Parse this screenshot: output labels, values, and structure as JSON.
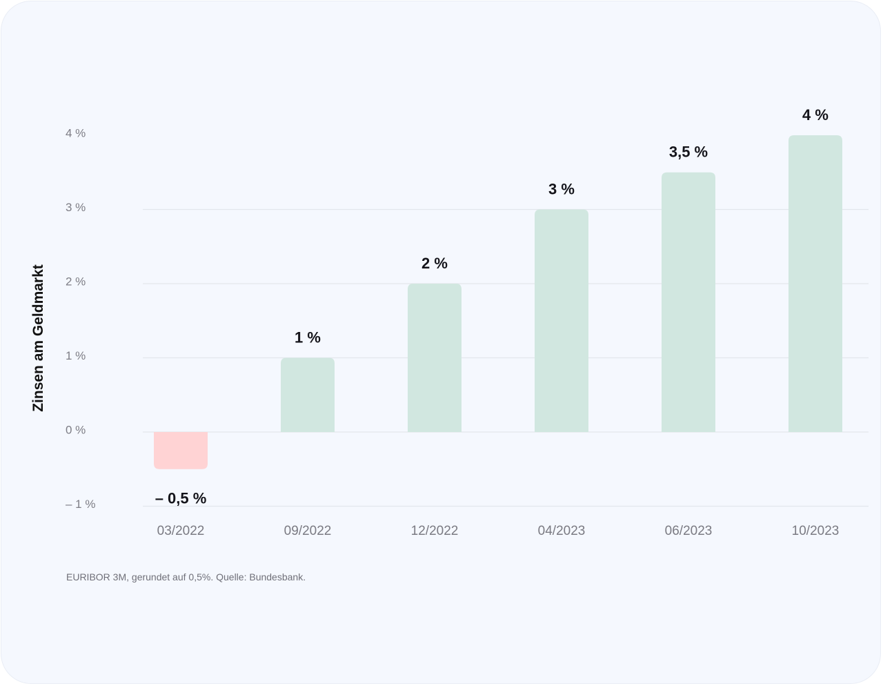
{
  "chart_data": {
    "type": "bar",
    "categories": [
      "03/2022",
      "09/2022",
      "12/2022",
      "04/2023",
      "06/2023",
      "10/2023"
    ],
    "values": [
      -0.5,
      1,
      2,
      3,
      3.5,
      4
    ],
    "value_labels": [
      "– 0,5 %",
      "1 %",
      "2 %",
      "3 %",
      "3,5 %",
      "4 %"
    ],
    "ylabel": "Zinsen am Geldmarkt",
    "yticks": [
      4,
      3,
      2,
      1,
      0,
      -1
    ],
    "ytick_labels": [
      "4 %",
      "3 %",
      "2 %",
      "1 %",
      "0 %",
      "– 1 %"
    ],
    "ylim": [
      -1,
      4
    ],
    "grid": true,
    "colors": {
      "positive": "#d1e7e0",
      "negative": "#ffd3d4",
      "grid": "#e3e6ec"
    }
  },
  "caption": "EURIBOR 3M, gerundet auf 0,5%. Quelle: Bundesbank."
}
